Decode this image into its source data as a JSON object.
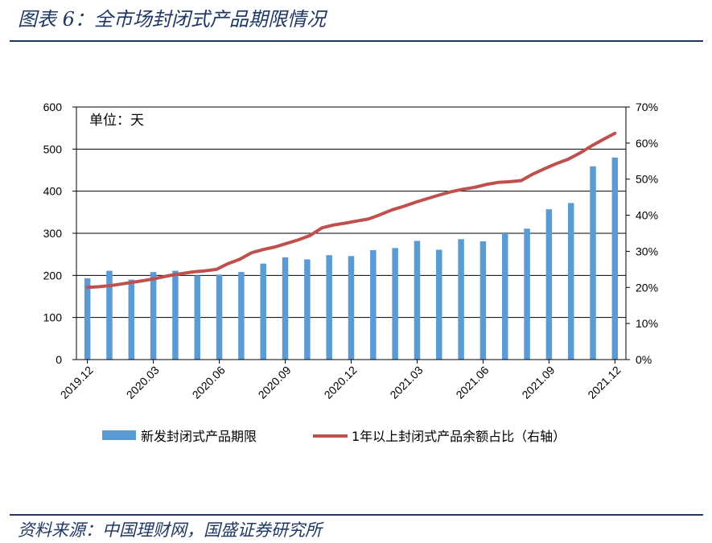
{
  "header": {
    "title": "图表 6：全市场封闭式产品期限情况"
  },
  "footer": {
    "source": "资料来源：中国理财网，国盛证券研究所"
  },
  "colors": {
    "bar": "#5b9bd5",
    "line": "#c0504d",
    "rule": "#1f3864",
    "grid": "#000000"
  },
  "chart_data": {
    "type": "bar+line",
    "unit_label": "单位：天",
    "left_axis": {
      "ylim": [
        0,
        600
      ],
      "ticks": [
        0,
        100,
        200,
        300,
        400,
        500,
        600
      ],
      "tick_labels": [
        "0",
        "100",
        "200",
        "300",
        "400",
        "500",
        "600"
      ]
    },
    "right_axis": {
      "ylim": [
        0,
        70
      ],
      "ticks": [
        0,
        10,
        20,
        30,
        40,
        50,
        60,
        70
      ],
      "tick_labels": [
        "0%",
        "10%",
        "20%",
        "30%",
        "40%",
        "50%",
        "60%",
        "70%"
      ]
    },
    "x_tick_labels": [
      "2019.12",
      "2020.03",
      "2020.06",
      "2020.09",
      "2020.12",
      "2021.03",
      "2021.06",
      "2021.09",
      "2021.12"
    ],
    "x_tick_positions": [
      0,
      3,
      6,
      9,
      12,
      15,
      18,
      21,
      24
    ],
    "series": [
      {
        "name": "新发封闭式产品期限",
        "type": "bar",
        "axis": "left",
        "values": [
          193,
          211,
          190,
          208,
          211,
          200,
          202,
          208,
          228,
          243,
          238,
          248,
          246,
          260,
          265,
          282,
          261,
          286,
          281,
          300,
          311,
          357,
          372,
          459,
          480
        ]
      },
      {
        "name": "1年以上封闭式产品余额占比（右轴）",
        "type": "line",
        "axis": "right",
        "values": [
          20.0,
          20.2,
          20.5,
          21.0,
          21.5,
          22.0,
          22.6,
          23.3,
          23.8,
          24.3,
          24.6,
          25.0,
          26.6,
          27.8,
          29.6,
          30.5,
          31.2,
          32.2,
          33.2,
          34.4,
          36.5,
          37.3,
          37.8,
          38.4,
          39.0,
          40.2,
          41.5,
          42.5,
          43.6,
          44.6,
          45.6,
          46.5,
          47.2,
          47.7,
          48.5,
          49.1,
          49.3,
          49.6,
          51.4,
          52.9,
          54.3,
          55.5,
          57.2,
          59.2,
          61.0,
          62.7
        ]
      }
    ],
    "legend_position": "bottom"
  }
}
